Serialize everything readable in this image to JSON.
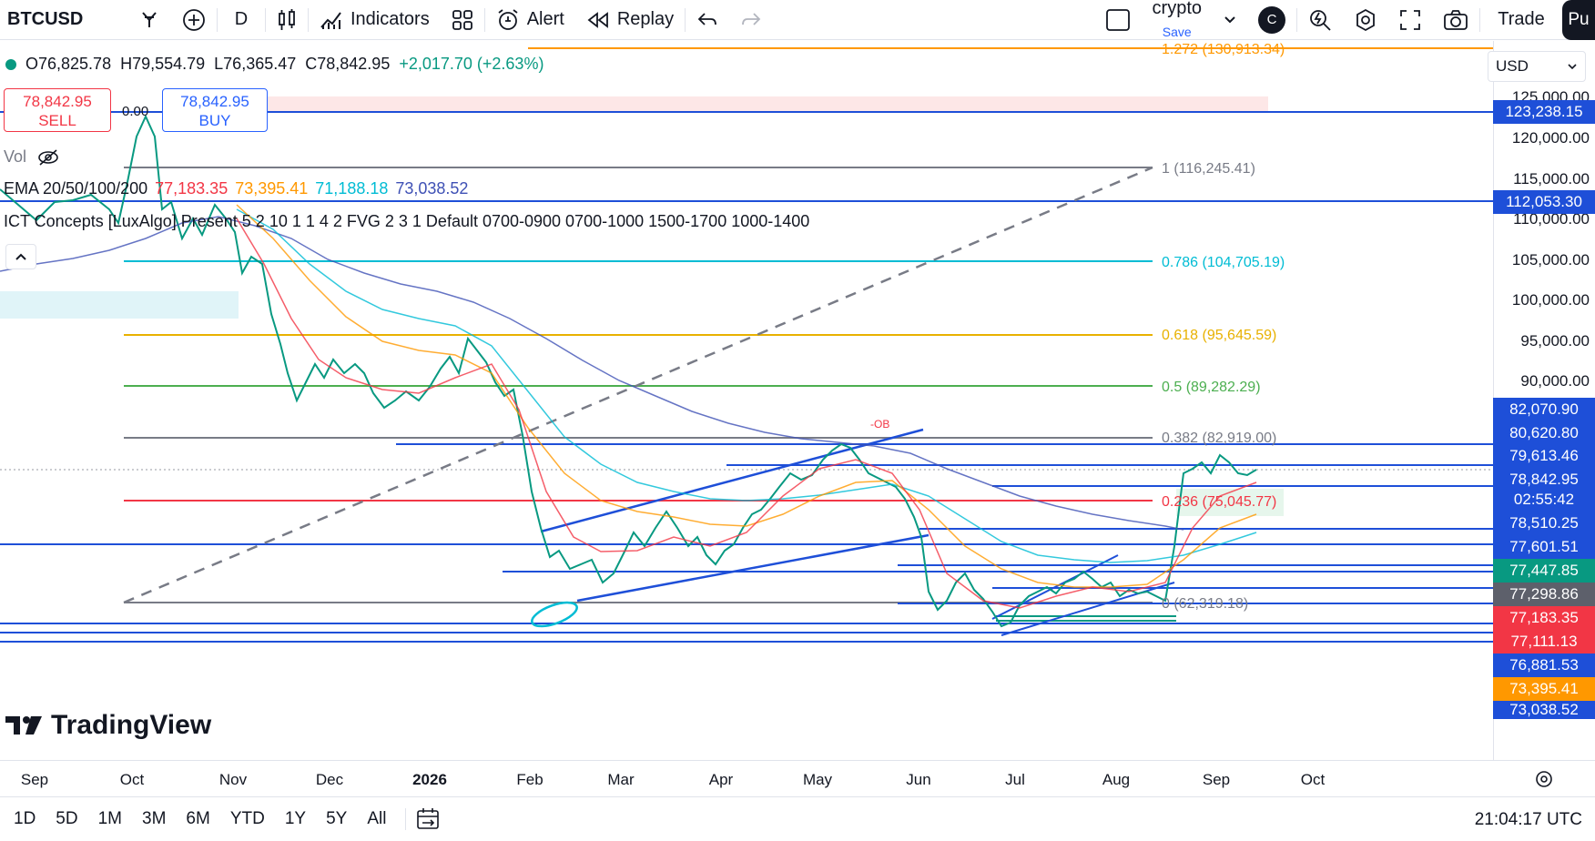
{
  "toolbar": {
    "symbol": "BTCUSD",
    "interval": "D",
    "indicators_label": "Indicators",
    "alert_label": "Alert",
    "replay_label": "Replay",
    "layout_name": "crypto",
    "layout_save": "Save",
    "avatar_letter": "C",
    "trade_label": "Trade",
    "publish_label": "Pu"
  },
  "legend": {
    "open": "O76,825.78",
    "high": "H79,554.79",
    "low": "L76,365.47",
    "close": "C78,842.95",
    "change": "+2,017.70 (+2.63%)",
    "sell_price": "78,842.95",
    "sell_label": "SELL",
    "buy_price": "78,842.95",
    "buy_label": "BUY",
    "spread": "0.00",
    "vol_label": "Vol",
    "ema_name": "EMA 20/50/100/200",
    "ema_values": [
      "77,183.35",
      "73,395.41",
      "71,188.18",
      "73,038.52"
    ],
    "ema_colors": [
      "#f23645",
      "#ff9800",
      "#00bcd4",
      "#3f51b5"
    ],
    "ict_label": "ICT Concepts [LuxAlgo] Present 5 2 10 1 1 4 2 FVG 2 3 1 Default 0700-0900 0700-1000 1500-1700 1000-1400"
  },
  "currency": "USD",
  "price_ticks": [
    "125,000.00",
    "120,000.00",
    "115,000.00",
    "110,000.00",
    "105,000.00",
    "100,000.00",
    "95,000.00",
    "90,000.00"
  ],
  "price_labels": [
    {
      "text": "123,238.15",
      "color": "#1e4fd8"
    },
    {
      "text": "112,053.30",
      "color": "#1e4fd8"
    },
    {
      "text": "82,070.90",
      "color": "#1e4fd8"
    },
    {
      "text": "80,620.80",
      "color": "#1e4fd8"
    },
    {
      "text": "79,613.46",
      "color": "#1e4fd8"
    },
    {
      "text": "78,842.95",
      "color": "#1e4fd8"
    },
    {
      "text": "02:55:42",
      "color": "#1e4fd8"
    },
    {
      "text": "78,510.25",
      "color": "#1e4fd8"
    },
    {
      "text": "77,601.51",
      "color": "#1e4fd8"
    },
    {
      "text": "77,447.85",
      "color": "#089981"
    },
    {
      "text": "77,298.86",
      "color": "#5d606b"
    },
    {
      "text": "77,183.35",
      "color": "#f23645"
    },
    {
      "text": "77,111.13",
      "color": "#f23645"
    },
    {
      "text": "76,881.53",
      "color": "#1e4fd8"
    },
    {
      "text": "73,395.41",
      "color": "#ff9800"
    },
    {
      "text": "73,038.52",
      "color": "#1e4fd8"
    }
  ],
  "fib_levels": [
    {
      "text": "1.272 (130,913.34)",
      "color": "#ff9800"
    },
    {
      "text": "1 (116,245.41)",
      "color": "#787b86"
    },
    {
      "text": "0.786 (104,705.19)",
      "color": "#00bcd4"
    },
    {
      "text": "0.618 (95,645.59)",
      "color": "#e8b100"
    },
    {
      "text": "0.5 (89,282.29)",
      "color": "#4caf50"
    },
    {
      "text": "0.382 (82,919.00)",
      "color": "#787b86"
    },
    {
      "text": "0.236 (75,045.77)",
      "color": "#f23645"
    },
    {
      "text": "0 (62,319.18)",
      "color": "#787b86"
    }
  ],
  "ob_label": "-OB",
  "time_labels": [
    "Sep",
    "Oct",
    "Nov",
    "Dec",
    "2026",
    "Feb",
    "Mar",
    "Apr",
    "May",
    "Jun",
    "Jul",
    "Aug",
    "Sep",
    "Oct"
  ],
  "ranges": [
    "1D",
    "5D",
    "1M",
    "3M",
    "6M",
    "YTD",
    "1Y",
    "5Y",
    "All"
  ],
  "clock": "21:04:17 UTC",
  "logo_text": "TradingView"
}
